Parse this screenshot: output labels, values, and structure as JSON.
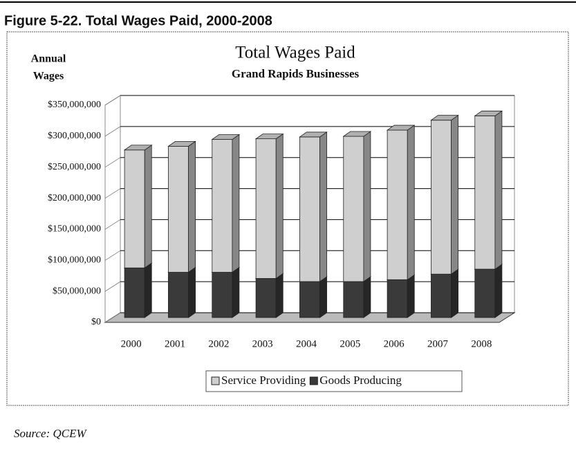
{
  "header": "Figure 5-22.  Total Wages Paid, 2000-2008",
  "source": "Source: QCEW",
  "chart_data": {
    "type": "bar",
    "stacked": true,
    "depth_3d": true,
    "title": "Total Wages Paid",
    "subtitle": "Grand Rapids Businesses",
    "y_label": [
      "Annual",
      "Wages"
    ],
    "categories": [
      "2000",
      "2001",
      "2002",
      "2003",
      "2004",
      "2005",
      "2006",
      "2007",
      "2008"
    ],
    "series": [
      {
        "name": "Service Providing",
        "color": "#cfcfcf",
        "values": [
          190000000,
          203000000,
          214000000,
          225000000,
          233000000,
          234000000,
          241000000,
          248000000,
          247000000
        ]
      },
      {
        "name": "Goods Producing",
        "color": "#3a3a3a",
        "values": [
          80000000,
          73000000,
          73000000,
          63000000,
          58000000,
          58000000,
          61000000,
          70000000,
          78000000
        ]
      }
    ],
    "stack_order": [
      1,
      0
    ],
    "ylim": [
      0,
      350000000
    ],
    "yticks": [
      {
        "value": 0,
        "label": "$0"
      },
      {
        "value": 50000000,
        "label": "$50,000,000"
      },
      {
        "value": 100000000,
        "label": "$100,000,000"
      },
      {
        "value": 150000000,
        "label": "$150,000,000"
      },
      {
        "value": 200000000,
        "label": "$200,000,000"
      },
      {
        "value": 250000000,
        "label": "$250,000,000"
      },
      {
        "value": 300000000,
        "label": "$300,000,000"
      },
      {
        "value": 350000000,
        "label": "$350,000,000"
      }
    ],
    "grid": true,
    "legend": "bottom"
  }
}
